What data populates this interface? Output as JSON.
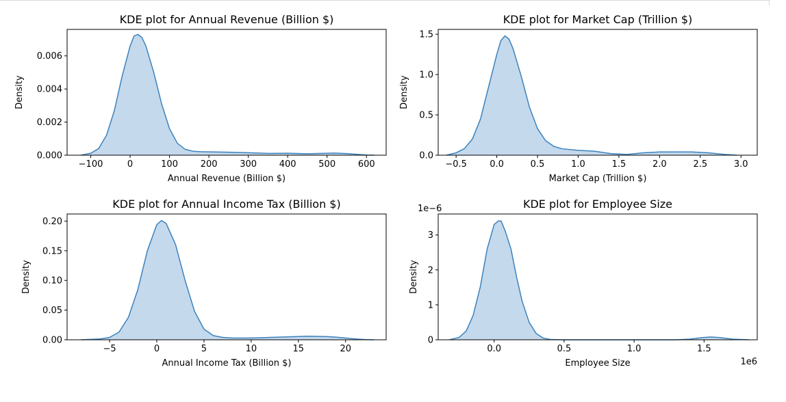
{
  "chart_data": [
    {
      "type": "area",
      "title": "KDE plot for Annual Revenue (Billion $)",
      "xlabel": "Annual Revenue (Billion $)",
      "ylabel": "Density",
      "xlim": [
        -160,
        650
      ],
      "ylim": [
        0,
        0.0076
      ],
      "xticks": [
        -100,
        0,
        100,
        200,
        300,
        400,
        500,
        600
      ],
      "xtick_labels": [
        "−100",
        "0",
        "100",
        "200",
        "300",
        "400",
        "500",
        "600"
      ],
      "yticks": [
        0,
        0.002,
        0.004,
        0.006
      ],
      "ytick_labels": [
        "0.000",
        "0.002",
        "0.004",
        "0.006"
      ],
      "offset_text": "",
      "x": [
        -125,
        -100,
        -80,
        -60,
        -40,
        -20,
        0,
        10,
        20,
        30,
        40,
        60,
        80,
        100,
        120,
        140,
        160,
        180,
        200,
        250,
        300,
        350,
        400,
        450,
        500,
        520,
        550,
        600,
        620
      ],
      "y": [
        0.0,
        0.00012,
        0.0004,
        0.0012,
        0.0027,
        0.0048,
        0.0066,
        0.0072,
        0.0073,
        0.0071,
        0.0066,
        0.005,
        0.0031,
        0.0016,
        0.00072,
        0.00035,
        0.00024,
        0.00021,
        0.0002,
        0.00018,
        0.00015,
        0.00011,
        0.00012,
        9e-05,
        0.00012,
        0.00013,
        0.0001,
        1e-05,
        0.0
      ]
    },
    {
      "type": "area",
      "title": "KDE plot for Market Cap (Trillion $)",
      "xlabel": "Market Cap (Trillion $)",
      "ylabel": "Density",
      "xlim": [
        -0.72,
        3.2
      ],
      "ylim": [
        0,
        1.56
      ],
      "xticks": [
        -0.5,
        0.0,
        0.5,
        1.0,
        1.5,
        2.0,
        2.5,
        3.0
      ],
      "xtick_labels": [
        "−0.5",
        "0.0",
        "0.5",
        "1.0",
        "1.5",
        "2.0",
        "2.5",
        "3.0"
      ],
      "yticks": [
        0.0,
        0.5,
        1.0,
        1.5
      ],
      "ytick_labels": [
        "0.0",
        "0.5",
        "1.0",
        "1.5"
      ],
      "offset_text": "",
      "x": [
        -0.62,
        -0.5,
        -0.4,
        -0.3,
        -0.2,
        -0.1,
        0.0,
        0.05,
        0.1,
        0.15,
        0.2,
        0.3,
        0.4,
        0.5,
        0.6,
        0.7,
        0.8,
        1.0,
        1.2,
        1.4,
        1.6,
        1.8,
        2.0,
        2.2,
        2.4,
        2.6,
        2.8,
        2.95
      ],
      "y": [
        0.0,
        0.03,
        0.08,
        0.2,
        0.45,
        0.85,
        1.25,
        1.42,
        1.48,
        1.44,
        1.32,
        0.98,
        0.6,
        0.33,
        0.18,
        0.11,
        0.08,
        0.06,
        0.05,
        0.02,
        0.01,
        0.03,
        0.04,
        0.04,
        0.04,
        0.03,
        0.01,
        0.0
      ]
    },
    {
      "type": "area",
      "title": "KDE plot for Annual Income Tax (Billion $)",
      "xlabel": "Annual Income Tax (Billion $)",
      "ylabel": "Density",
      "xlim": [
        -9.5,
        24.3
      ],
      "ylim": [
        0,
        0.212
      ],
      "xticks": [
        -5,
        0,
        5,
        10,
        15,
        20
      ],
      "xtick_labels": [
        "−5",
        "0",
        "5",
        "10",
        "15",
        "20"
      ],
      "yticks": [
        0.0,
        0.05,
        0.1,
        0.15,
        0.2
      ],
      "ytick_labels": [
        "0.00",
        "0.05",
        "0.10",
        "0.15",
        "0.20"
      ],
      "offset_text": "",
      "x": [
        -8,
        -6,
        -5,
        -4,
        -3,
        -2,
        -1,
        0,
        0.5,
        1,
        2,
        3,
        4,
        5,
        6,
        7,
        8,
        9,
        10,
        11,
        12,
        14,
        16,
        18,
        19,
        20,
        21,
        22,
        23
      ],
      "y": [
        0.0,
        0.0015,
        0.004,
        0.013,
        0.038,
        0.085,
        0.15,
        0.194,
        0.201,
        0.196,
        0.16,
        0.1,
        0.048,
        0.018,
        0.007,
        0.004,
        0.003,
        0.003,
        0.003,
        0.0035,
        0.004,
        0.005,
        0.006,
        0.0055,
        0.0045,
        0.003,
        0.0015,
        0.0005,
        0.0
      ]
    },
    {
      "type": "area",
      "title": "KDE plot for Employee Size",
      "xlabel": "Employee Size",
      "ylabel": "Density",
      "xlim": [
        -0.4,
        1.88
      ],
      "ylim": [
        0,
        3.6e-06
      ],
      "xticks": [
        0.0,
        0.5,
        1.0,
        1.5
      ],
      "xtick_labels": [
        "0.0",
        "0.5",
        "1.0",
        "1.5"
      ],
      "yticks": [
        0,
        1e-06,
        2e-06,
        3e-06
      ],
      "ytick_labels": [
        "0",
        "1",
        "2",
        "3"
      ],
      "offset_text": "1e−6",
      "x_offset_text": "1e6",
      "x": [
        -0.32,
        -0.25,
        -0.2,
        -0.15,
        -0.1,
        -0.05,
        0.0,
        0.03,
        0.05,
        0.08,
        0.12,
        0.16,
        0.2,
        0.25,
        0.3,
        0.35,
        0.4,
        0.5,
        0.7,
        0.9,
        1.1,
        1.3,
        1.4,
        1.48,
        1.55,
        1.62,
        1.7,
        1.82
      ],
      "y": [
        0.0,
        7e-08,
        2.5e-07,
        7e-07,
        1.5e-06,
        2.6e-06,
        3.3e-06,
        3.4e-06,
        3.4e-06,
        3.1e-06,
        2.6e-06,
        1.8e-06,
        1.1e-06,
        5e-07,
        1.8e-07,
        5e-08,
        1e-08,
        0.0,
        0.0,
        0.0,
        0.0,
        0.0,
        2e-08,
        6e-08,
        8e-08,
        6e-08,
        2e-08,
        0.0
      ]
    }
  ]
}
